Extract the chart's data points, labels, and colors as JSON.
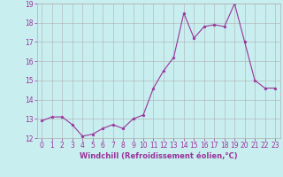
{
  "x": [
    0,
    1,
    2,
    3,
    4,
    5,
    6,
    7,
    8,
    9,
    10,
    11,
    12,
    13,
    14,
    15,
    16,
    17,
    18,
    19,
    20,
    21,
    22,
    23
  ],
  "y": [
    12.9,
    13.1,
    13.1,
    12.7,
    12.1,
    12.2,
    12.5,
    12.7,
    12.5,
    13.0,
    13.2,
    14.6,
    15.5,
    16.2,
    18.5,
    17.2,
    17.8,
    17.9,
    17.8,
    19.0,
    17.0,
    15.0,
    14.6,
    14.6
  ],
  "line_color": "#993399",
  "marker": "*",
  "bg_color": "#c8eef0",
  "grid_color": "#b0b0b0",
  "xlabel": "Windchill (Refroidissement éolien,°C)",
  "xlabel_color": "#993399",
  "tick_color": "#993399",
  "ylim": [
    12,
    19
  ],
  "yticks": [
    12,
    13,
    14,
    15,
    16,
    17,
    18,
    19
  ],
  "xticks": [
    0,
    1,
    2,
    3,
    4,
    5,
    6,
    7,
    8,
    9,
    10,
    11,
    12,
    13,
    14,
    15,
    16,
    17,
    18,
    19,
    20,
    21,
    22,
    23
  ],
  "tick_fontsize": 5.5,
  "label_fontsize": 6.0
}
